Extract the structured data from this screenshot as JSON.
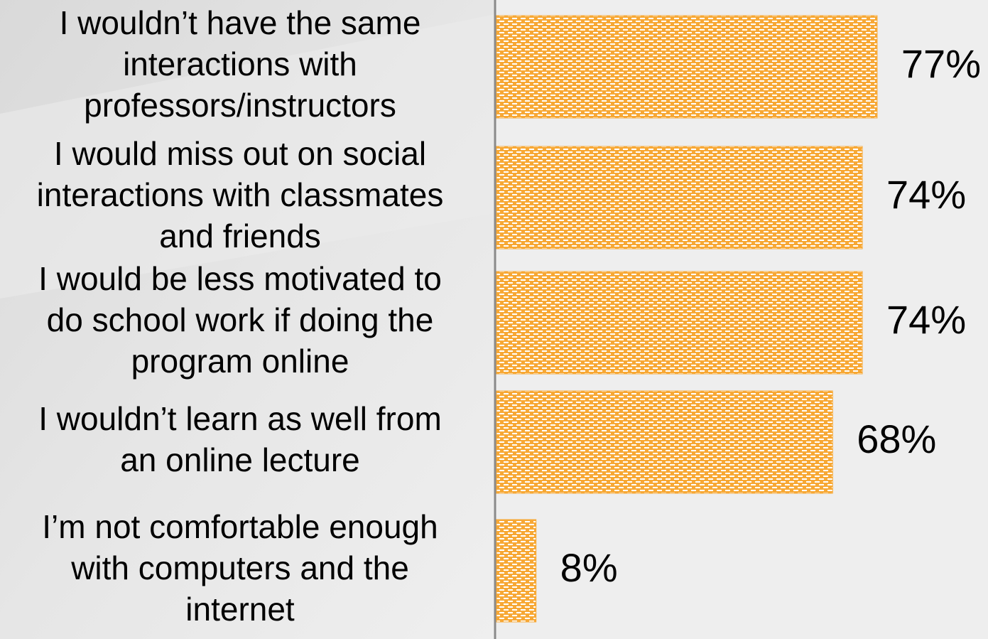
{
  "chart_data": {
    "type": "bar",
    "orientation": "horizontal",
    "categories": [
      [
        "I wouldn’t have the same",
        "interactions with",
        "professors/instructors"
      ],
      [
        "I would miss out on social",
        "interactions with classmates",
        "and friends"
      ],
      [
        "I would be less motivated to",
        "do school work if doing the",
        "program online"
      ],
      [
        "I wouldn’t learn as well from",
        "an online lecture"
      ],
      [
        "I’m not comfortable enough",
        "with computers and the",
        "internet"
      ]
    ],
    "values": [
      77,
      74,
      74,
      68,
      8
    ],
    "value_labels": [
      "77%",
      "74%",
      "74%",
      "68%",
      "8%"
    ],
    "color": "#f7a835",
    "xlim": [
      0,
      100
    ]
  }
}
